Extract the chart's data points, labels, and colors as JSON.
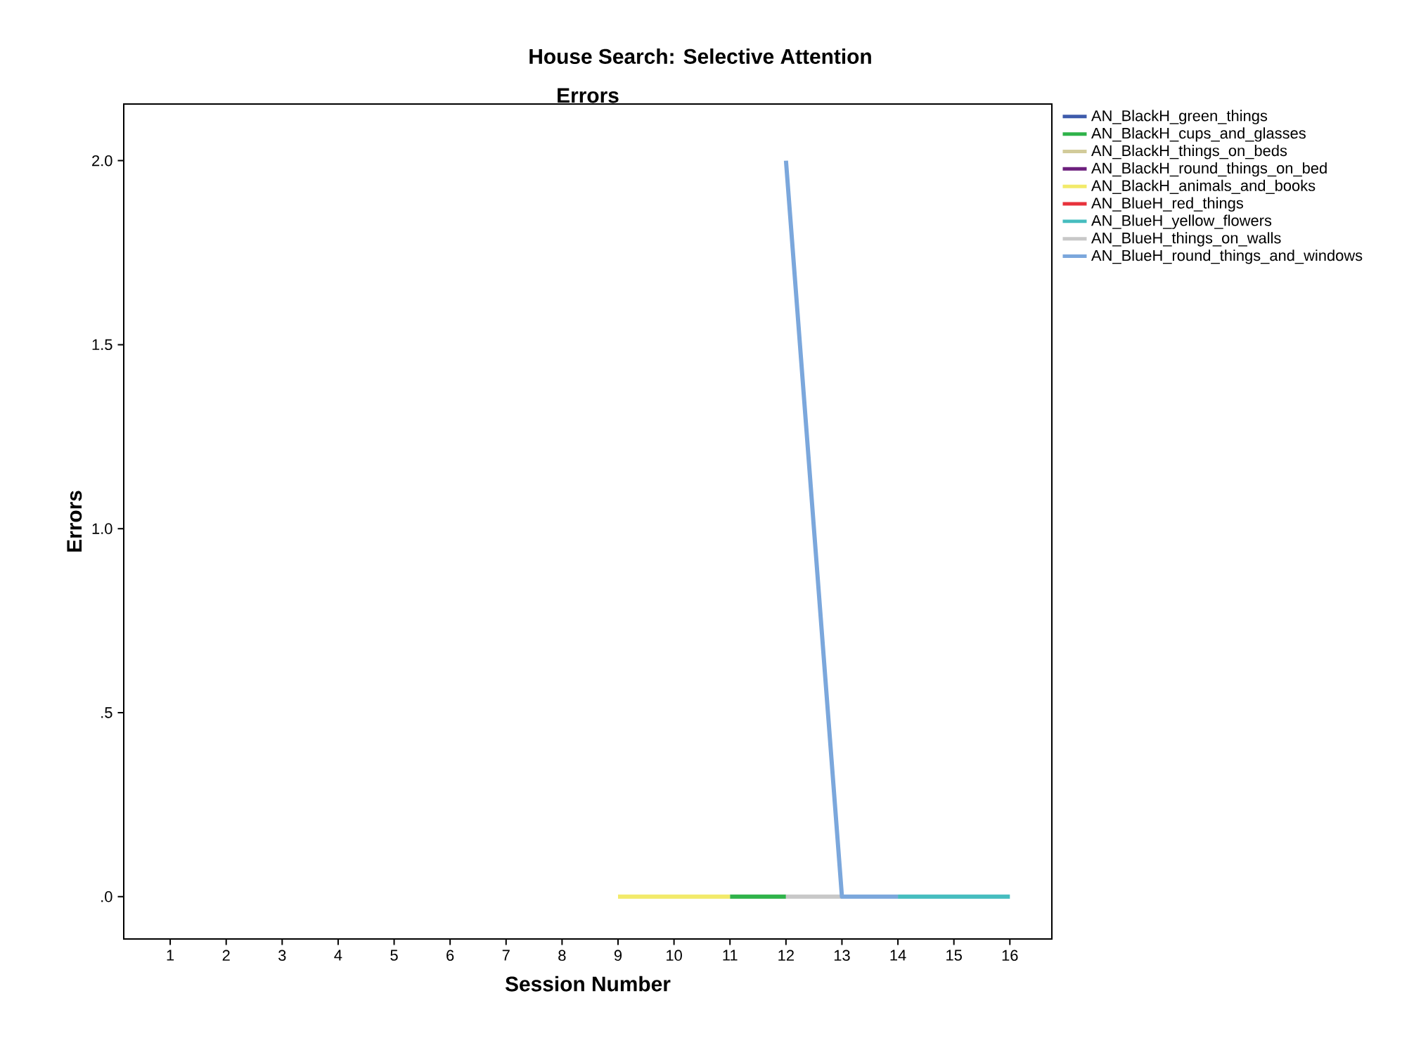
{
  "chart_data": {
    "type": "line",
    "title": "House Search: Selective Attention",
    "subtitle": "Errors",
    "xlabel": "Session Number",
    "ylabel": "Errors",
    "categories": [
      "1",
      "2",
      "3",
      "4",
      "5",
      "6",
      "7",
      "8",
      "9",
      "10",
      "11",
      "12",
      "13",
      "14",
      "15",
      "16"
    ],
    "ylim": [
      -0.115,
      2.154
    ],
    "yticks": [
      {
        "value": 0,
        "label": ".0"
      },
      {
        "value": 0.5,
        "label": ".5"
      },
      {
        "value": 1,
        "label": "1.0"
      },
      {
        "value": 1.5,
        "label": "1.5"
      },
      {
        "value": 2,
        "label": "2.0"
      }
    ],
    "grid": false,
    "legend": "right",
    "marker": "none",
    "line_style": "solid",
    "series": [
      {
        "name": "AN_BlackH_green_things",
        "color": "#3e5bab",
        "values": [
          null,
          null,
          null,
          null,
          null,
          null,
          null,
          null,
          null,
          null,
          null,
          null,
          null,
          null,
          null,
          null
        ]
      },
      {
        "name": "AN_BlackH_cups_and_glasses",
        "color": "#2fb34a",
        "values": [
          null,
          null,
          null,
          null,
          null,
          null,
          null,
          null,
          null,
          null,
          0,
          0,
          null,
          null,
          null,
          null
        ]
      },
      {
        "name": "AN_BlackH_things_on_beds",
        "color": "#d2cb9a",
        "values": [
          null,
          null,
          null,
          null,
          null,
          null,
          null,
          null,
          null,
          null,
          null,
          null,
          null,
          null,
          null,
          null
        ]
      },
      {
        "name": "AN_BlackH_round_things_on_bed",
        "color": "#6c1f7d",
        "values": [
          null,
          null,
          null,
          null,
          null,
          null,
          null,
          null,
          null,
          null,
          null,
          null,
          null,
          null,
          null,
          null
        ]
      },
      {
        "name": "AN_BlackH_animals_and_books",
        "color": "#f2ea6a",
        "values": [
          null,
          null,
          null,
          null,
          null,
          null,
          null,
          null,
          0,
          0,
          0,
          null,
          null,
          null,
          null,
          null
        ]
      },
      {
        "name": "AN_BlueH_red_things",
        "color": "#e8323c",
        "values": [
          null,
          null,
          null,
          null,
          null,
          null,
          null,
          null,
          null,
          null,
          null,
          null,
          null,
          null,
          null,
          null
        ]
      },
      {
        "name": "AN_BlueH_yellow_flowers",
        "color": "#46bdbf",
        "values": [
          null,
          null,
          null,
          null,
          null,
          null,
          null,
          null,
          null,
          null,
          null,
          null,
          null,
          0,
          0,
          0
        ]
      },
      {
        "name": "AN_BlueH_things_on_walls",
        "color": "#c8c8c8",
        "values": [
          null,
          null,
          null,
          null,
          null,
          null,
          null,
          null,
          null,
          null,
          null,
          0,
          0,
          null,
          null,
          null
        ]
      },
      {
        "name": "AN_BlueH_round_things_and_windows",
        "color": "#7ba7dc",
        "values": [
          null,
          null,
          null,
          null,
          null,
          null,
          null,
          null,
          null,
          null,
          null,
          2,
          0,
          0,
          null,
          null
        ]
      }
    ]
  }
}
